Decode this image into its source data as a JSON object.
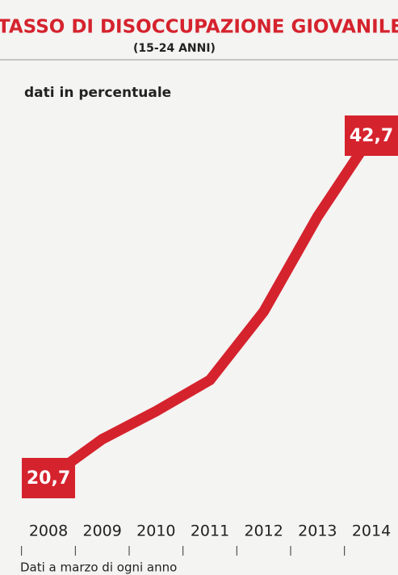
{
  "chart_data": {
    "type": "line",
    "title": "TASSO DI DISOCCUPAZIONE GIOVANILE",
    "subtitle": "(15-24 ANNI)",
    "y_label": "dati in percentuale",
    "note": "Dati a marzo di ogni anno",
    "categories": [
      "2008",
      "2009",
      "2010",
      "2011",
      "2012",
      "2013",
      "2014"
    ],
    "series": [
      {
        "color": "#d5232e",
        "values": [
          20.7,
          23.2,
          25.0,
          27.0,
          31.4,
          37.5,
          42.7
        ],
        "value_labels": [
          "20,7",
          null,
          null,
          null,
          null,
          null,
          "42,7"
        ]
      }
    ]
  }
}
